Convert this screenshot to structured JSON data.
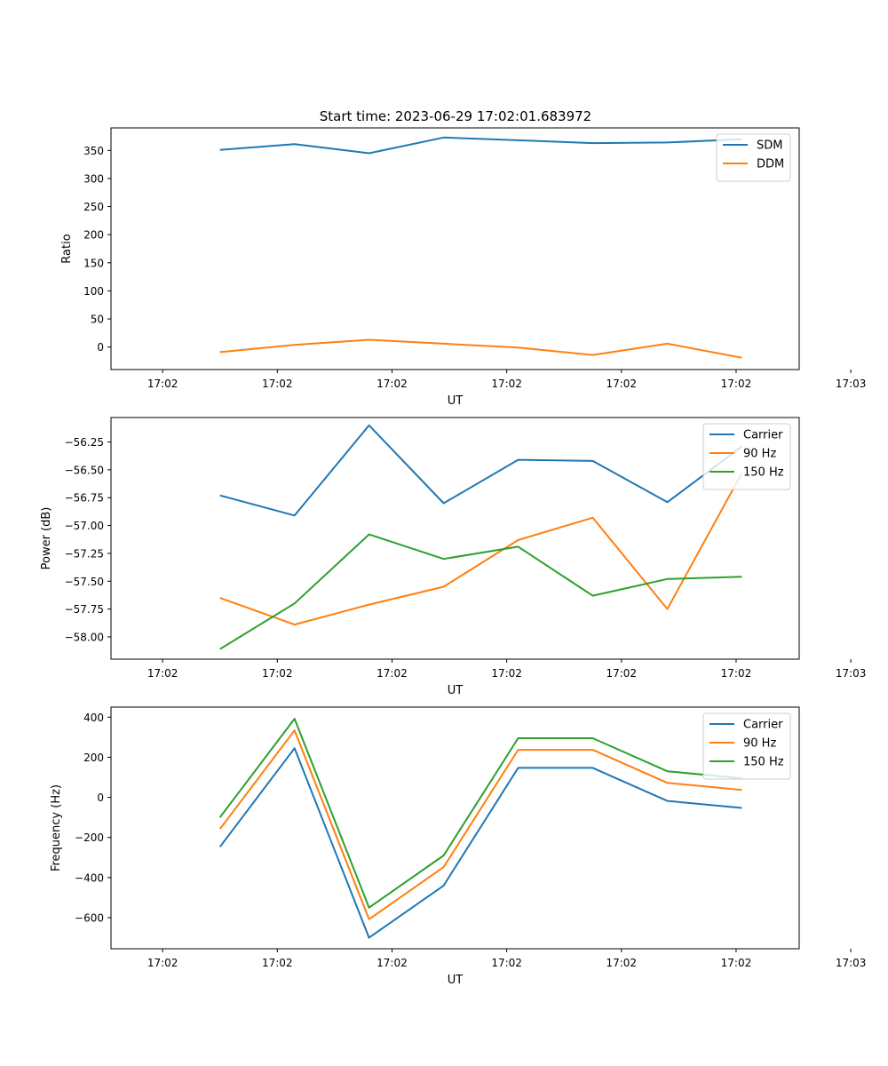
{
  "figure_title": "Start time: 2023-06-29 17:02:01.683972",
  "chart_data": [
    {
      "type": "line",
      "title": "Start time: 2023-06-29 17:02:01.683972",
      "xlabel": "UT",
      "ylabel": "Ratio",
      "x_ticks": [
        "17:02",
        "17:02",
        "17:02",
        "17:02",
        "17:02",
        "17:02",
        "17:03"
      ],
      "xlim": [
        -0.45,
        5.55
      ],
      "ylim": [
        -40,
        390
      ],
      "y_ticks": [
        0,
        50,
        100,
        150,
        200,
        250,
        300,
        350
      ],
      "y_tick_labels": [
        "0",
        "50",
        "100",
        "150",
        "200",
        "250",
        "300",
        "350"
      ],
      "x": [
        0.5,
        1.15,
        1.8,
        2.45,
        3.1,
        3.75,
        4.4,
        5.05
      ],
      "legend": "top-right",
      "grid": false,
      "series": [
        {
          "name": "SDM",
          "color": "#1f77b4",
          "values": [
            351,
            361,
            345,
            373,
            368,
            363,
            364,
            370
          ]
        },
        {
          "name": "DDM",
          "color": "#ff7f0e",
          "values": [
            -9,
            4,
            13,
            6,
            -1,
            -14,
            6,
            -19
          ]
        }
      ]
    },
    {
      "type": "line",
      "title": "",
      "xlabel": "UT",
      "ylabel": "Power (dB)",
      "x_ticks": [
        "17:02",
        "17:02",
        "17:02",
        "17:02",
        "17:02",
        "17:02",
        "17:03"
      ],
      "xlim": [
        -0.45,
        5.55
      ],
      "ylim": [
        -58.2,
        -56.03
      ],
      "y_ticks": [
        -58.0,
        -57.75,
        -57.5,
        -57.25,
        -57.0,
        -56.75,
        -56.5,
        -56.25
      ],
      "y_tick_labels": [
        "−58.00",
        "−57.75",
        "−57.50",
        "−57.25",
        "−57.00",
        "−56.75",
        "−56.50",
        "−56.25"
      ],
      "x": [
        0.5,
        1.15,
        1.8,
        2.45,
        3.1,
        3.75,
        4.4,
        5.05
      ],
      "legend": "top-right",
      "grid": false,
      "series": [
        {
          "name": "Carrier",
          "color": "#1f77b4",
          "values": [
            -56.73,
            -56.91,
            -56.1,
            -56.8,
            -56.41,
            -56.42,
            -56.79,
            -56.29
          ]
        },
        {
          "name": "90 Hz",
          "color": "#ff7f0e",
          "values": [
            -57.65,
            -57.89,
            -57.71,
            -57.55,
            -57.13,
            -56.93,
            -57.75,
            -56.53
          ]
        },
        {
          "name": "150 Hz",
          "color": "#2ca02c",
          "values": [
            -58.11,
            -57.7,
            -57.08,
            -57.3,
            -57.19,
            -57.63,
            -57.48,
            -57.46
          ]
        }
      ]
    },
    {
      "type": "line",
      "title": "",
      "xlabel": "UT",
      "ylabel": "Frequency (Hz)",
      "x_ticks": [
        "17:02",
        "17:02",
        "17:02",
        "17:02",
        "17:02",
        "17:02",
        "17:03"
      ],
      "xlim": [
        -0.45,
        5.55
      ],
      "ylim": [
        -755,
        450
      ],
      "y_ticks": [
        -600,
        -400,
        -200,
        0,
        200,
        400
      ],
      "y_tick_labels": [
        "−600",
        "−400",
        "−200",
        "0",
        "200",
        "400"
      ],
      "x": [
        0.5,
        1.15,
        1.8,
        2.45,
        3.1,
        3.75,
        4.4,
        5.05
      ],
      "legend": "top-right",
      "grid": false,
      "series": [
        {
          "name": "Carrier",
          "color": "#1f77b4",
          "values": [
            -247,
            245,
            -700,
            -440,
            147,
            147,
            -18,
            -53
          ]
        },
        {
          "name": "90 Hz",
          "color": "#ff7f0e",
          "values": [
            -158,
            334,
            -608,
            -348,
            237,
            237,
            72,
            37
          ]
        },
        {
          "name": "150 Hz",
          "color": "#2ca02c",
          "values": [
            -100,
            392,
            -550,
            -290,
            295,
            295,
            130,
            95
          ]
        }
      ]
    }
  ]
}
